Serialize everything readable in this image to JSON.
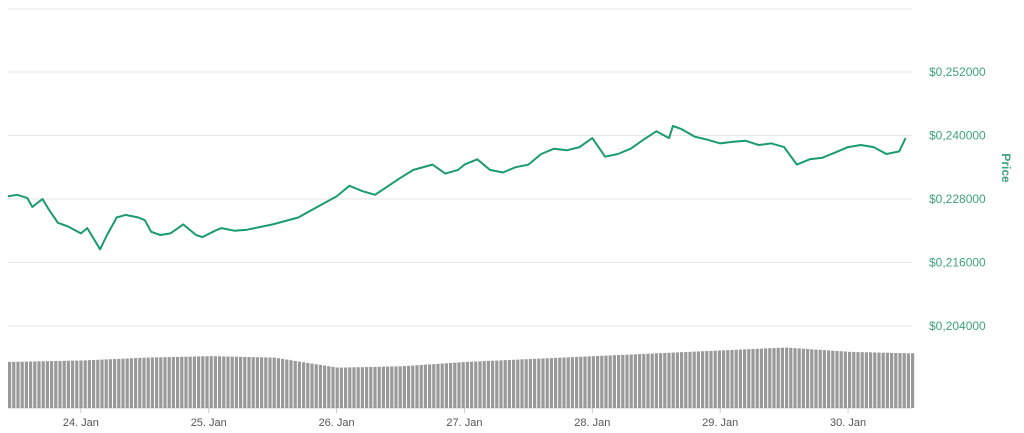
{
  "chart_data": {
    "type": "line",
    "title": "",
    "xlabel": "",
    "ylabel": "Price",
    "y_axis_position": "right",
    "ylim": [
      0.204,
      0.264
    ],
    "yticks": [
      0.204,
      0.216,
      0.228,
      0.24,
      0.252
    ],
    "ytick_labels": [
      "$0,204000",
      "$0,216000",
      "$0,228000",
      "$0,240000",
      "$0,252000"
    ],
    "xticks": [
      24,
      25,
      26,
      27,
      28,
      29,
      30
    ],
    "xtick_labels": [
      "24. Jan",
      "25. Jan",
      "26. Jan",
      "27. Jan",
      "28. Jan",
      "29. Jan",
      "30. Jan"
    ],
    "xlim": [
      23.43,
      30.5
    ],
    "grid": true,
    "legend": "none",
    "colors": {
      "line": "#1a9c6e",
      "volume": "#999999",
      "grid": "#e6e6e6",
      "axis_text": "#3fa37c"
    },
    "series": [
      {
        "x": [
          23.43,
          23.5,
          23.58,
          23.62,
          23.7,
          23.75,
          23.82,
          23.9,
          24.0,
          24.05,
          24.15,
          24.2,
          24.28,
          24.35,
          24.45,
          24.5,
          24.55,
          24.62,
          24.7,
          24.8,
          24.9,
          24.95,
          25.05,
          25.1,
          25.2,
          25.3,
          25.5,
          25.7,
          25.85,
          26.0,
          26.1,
          26.2,
          26.3,
          26.5,
          26.6,
          26.75,
          26.85,
          26.95,
          27.0,
          27.1,
          27.2,
          27.3,
          27.4,
          27.5,
          27.6,
          27.7,
          27.8,
          27.9,
          28.0,
          28.1,
          28.2,
          28.3,
          28.4,
          28.5,
          28.6,
          28.63,
          28.7,
          28.8,
          28.9,
          29.0,
          29.1,
          29.2,
          29.3,
          29.4,
          29.5,
          29.6,
          29.7,
          29.8,
          29.9,
          30.0,
          30.1,
          30.2,
          30.3,
          30.4,
          30.45
        ],
        "y": [
          0.2285,
          0.2288,
          0.2282,
          0.2265,
          0.228,
          0.226,
          0.2235,
          0.2228,
          0.2215,
          0.2225,
          0.2185,
          0.221,
          0.2245,
          0.225,
          0.2245,
          0.224,
          0.2218,
          0.2212,
          0.2215,
          0.2232,
          0.2212,
          0.2208,
          0.222,
          0.2225,
          0.222,
          0.2222,
          0.2232,
          0.2245,
          0.2265,
          0.2285,
          0.2305,
          0.2295,
          0.2288,
          0.232,
          0.2335,
          0.2345,
          0.2328,
          0.2335,
          0.2345,
          0.2355,
          0.2335,
          0.233,
          0.234,
          0.2345,
          0.2365,
          0.2375,
          0.2372,
          0.2378,
          0.2395,
          0.236,
          0.2365,
          0.2375,
          0.2392,
          0.2408,
          0.2395,
          0.2418,
          0.2412,
          0.2398,
          0.2392,
          0.2385,
          0.2388,
          0.239,
          0.2382,
          0.2385,
          0.2378,
          0.2345,
          0.2355,
          0.2358,
          0.2368,
          0.2378,
          0.2382,
          0.2378,
          0.2365,
          0.237,
          0.2395
        ]
      }
    ],
    "volume": {
      "x": [
        23.43,
        24.0,
        24.5,
        25.0,
        25.5,
        26.0,
        26.5,
        27.0,
        27.5,
        28.0,
        28.5,
        29.0,
        29.5,
        30.0,
        30.45
      ],
      "relative": [
        0.64,
        0.66,
        0.7,
        0.72,
        0.7,
        0.56,
        0.58,
        0.64,
        0.68,
        0.72,
        0.76,
        0.8,
        0.84,
        0.78,
        0.76
      ]
    }
  }
}
